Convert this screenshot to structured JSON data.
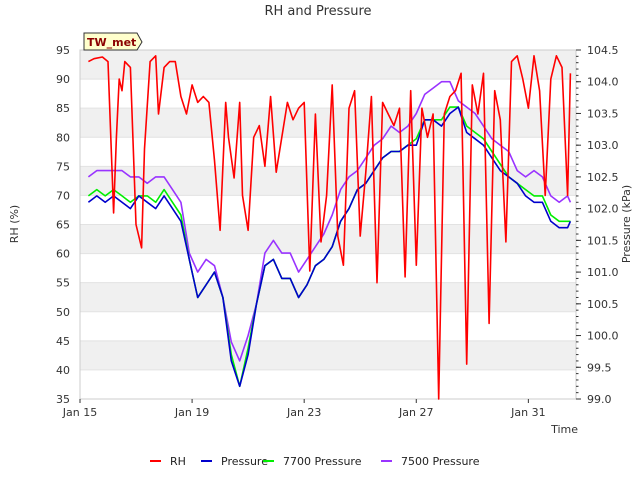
{
  "chart_data": {
    "type": "line",
    "title": "RH and Pressure",
    "badge": "TW_met",
    "xlabel": "Time",
    "ylabel_left": "RH (%)",
    "ylabel_right": "Pressure (kPa)",
    "x_ticks": [
      {
        "label": "Jan 15",
        "day": 15
      },
      {
        "label": "Jan 19",
        "day": 19
      },
      {
        "label": "Jan 23",
        "day": 23
      },
      {
        "label": "Jan 27",
        "day": 27
      },
      {
        "label": "Jan 31",
        "day": 31
      }
    ],
    "xlim_days": [
      15,
      32.7
    ],
    "ylim_left": [
      35,
      95
    ],
    "yticks_left": [
      35,
      40,
      45,
      50,
      55,
      60,
      65,
      70,
      75,
      80,
      85,
      90,
      95
    ],
    "ylim_right": [
      99.0,
      104.5
    ],
    "yticks_right": [
      "99.0",
      "99.5",
      "100.0",
      "100.5",
      "101.0",
      "101.5",
      "102.0",
      "102.5",
      "103.0",
      "103.5",
      "104.0",
      "104.5"
    ],
    "grid": "horizontal bands",
    "legend": "bottom",
    "series": [
      {
        "name": "RH",
        "color": "#ff0000",
        "axis": "left",
        "x": [
          15.3,
          15.5,
          15.8,
          16.0,
          16.2,
          16.3,
          16.4,
          16.5,
          16.6,
          16.8,
          17.0,
          17.2,
          17.3,
          17.5,
          17.7,
          17.8,
          18.0,
          18.2,
          18.4,
          18.6,
          18.8,
          19.0,
          19.2,
          19.4,
          19.6,
          19.8,
          20.0,
          20.2,
          20.3,
          20.5,
          20.7,
          20.8,
          21.0,
          21.2,
          21.4,
          21.6,
          21.8,
          22.0,
          22.2,
          22.4,
          22.6,
          22.8,
          23.0,
          23.2,
          23.4,
          23.6,
          23.8,
          24.0,
          24.2,
          24.4,
          24.6,
          24.8,
          25.0,
          25.2,
          25.4,
          25.6,
          25.8,
          26.0,
          26.2,
          26.4,
          26.6,
          26.8,
          27.0,
          27.2,
          27.4,
          27.6,
          27.8,
          28.0,
          28.2,
          28.4,
          28.6,
          28.8,
          29.0,
          29.2,
          29.4,
          29.6,
          29.8,
          30.0,
          30.2,
          30.4,
          30.6,
          30.8,
          31.0,
          31.2,
          31.4,
          31.6,
          31.8,
          32.0,
          32.2,
          32.4,
          32.5
        ],
        "y": [
          93,
          93.5,
          93.8,
          93,
          67,
          80,
          90,
          88,
          93,
          92,
          65,
          61,
          78,
          93,
          94,
          84,
          92,
          93,
          93,
          87,
          84,
          89,
          86,
          87,
          86,
          76,
          64,
          86,
          80,
          73,
          86,
          70,
          64,
          80,
          82,
          75,
          87,
          74,
          80,
          86,
          83,
          85,
          86,
          57,
          84,
          62,
          70,
          89,
          63,
          58,
          85,
          88,
          63,
          74,
          87,
          55,
          86,
          84,
          82,
          85,
          56,
          88,
          58,
          85,
          80,
          84,
          35,
          84,
          87,
          88,
          91,
          41,
          89,
          84,
          91,
          48,
          88,
          83,
          62,
          93,
          94,
          90,
          85,
          94,
          88,
          70,
          90,
          94,
          92,
          70,
          91
        ],
        "values_note": ""
      },
      {
        "name": "Pressure",
        "color": "#0000cc",
        "axis": "right",
        "x": [
          15.3,
          15.6,
          15.9,
          16.2,
          16.5,
          16.8,
          17.1,
          17.4,
          17.7,
          18.0,
          18.3,
          18.6,
          18.9,
          19.2,
          19.5,
          19.8,
          20.1,
          20.4,
          20.7,
          21.0,
          21.3,
          21.6,
          21.9,
          22.2,
          22.5,
          22.8,
          23.1,
          23.4,
          23.7,
          24.0,
          24.3,
          24.6,
          24.9,
          25.2,
          25.5,
          25.8,
          26.1,
          26.4,
          26.7,
          27.0,
          27.3,
          27.6,
          27.9,
          28.2,
          28.5,
          28.8,
          29.1,
          29.4,
          29.7,
          30.0,
          30.3,
          30.6,
          30.9,
          31.2,
          31.5,
          31.8,
          32.1,
          32.4,
          32.5
        ],
        "y": [
          102.1,
          102.2,
          102.1,
          102.2,
          102.1,
          102.0,
          102.2,
          102.1,
          102.0,
          102.2,
          102.0,
          101.8,
          101.2,
          100.6,
          100.8,
          101.0,
          100.6,
          99.6,
          99.2,
          99.7,
          100.5,
          101.1,
          101.2,
          100.9,
          100.9,
          100.6,
          100.8,
          101.1,
          101.2,
          101.4,
          101.8,
          102.0,
          102.3,
          102.4,
          102.6,
          102.8,
          102.9,
          102.9,
          103.0,
          103.0,
          103.4,
          103.4,
          103.3,
          103.5,
          103.6,
          103.2,
          103.1,
          103.0,
          102.8,
          102.6,
          102.5,
          102.4,
          102.2,
          102.1,
          102.1,
          101.8,
          101.7,
          101.7,
          101.8
        ]
      },
      {
        "name": "7700 Pressure",
        "color": "#00ee00",
        "axis": "right",
        "x": [
          15.3,
          15.6,
          15.9,
          16.2,
          16.5,
          16.8,
          17.1,
          17.4,
          17.7,
          18.0,
          18.3,
          18.6,
          18.9,
          19.2,
          19.5,
          19.8,
          20.1,
          20.4,
          20.7,
          21.0,
          21.3,
          21.6,
          21.9,
          22.2,
          22.5,
          22.8,
          23.1,
          23.4,
          23.7,
          24.0,
          24.3,
          24.6,
          24.9,
          25.2,
          25.5,
          25.8,
          26.1,
          26.4,
          26.7,
          27.0,
          27.3,
          27.6,
          27.9,
          28.2,
          28.5,
          28.8,
          29.1,
          29.4,
          29.7,
          30.0,
          30.3,
          30.6,
          30.9,
          31.2,
          31.5,
          31.8,
          32.1,
          32.4,
          32.5
        ],
        "y": [
          102.2,
          102.3,
          102.2,
          102.3,
          102.2,
          102.1,
          102.2,
          102.2,
          102.1,
          102.3,
          102.1,
          101.9,
          101.2,
          100.6,
          100.8,
          101.0,
          100.6,
          99.7,
          99.2,
          99.8,
          100.5,
          101.1,
          101.2,
          100.9,
          100.9,
          100.6,
          100.8,
          101.1,
          101.2,
          101.4,
          101.8,
          102.0,
          102.3,
          102.4,
          102.6,
          102.8,
          102.9,
          102.9,
          103.0,
          103.1,
          103.4,
          103.4,
          103.4,
          103.6,
          103.6,
          103.3,
          103.2,
          103.1,
          102.9,
          102.7,
          102.5,
          102.4,
          102.3,
          102.2,
          102.2,
          101.9,
          101.8,
          101.8,
          101.8
        ]
      },
      {
        "name": "7500 Pressure",
        "color": "#9933ff",
        "axis": "right",
        "x": [
          15.3,
          15.6,
          15.9,
          16.2,
          16.5,
          16.8,
          17.1,
          17.4,
          17.7,
          18.0,
          18.3,
          18.6,
          18.9,
          19.2,
          19.5,
          19.8,
          20.1,
          20.4,
          20.7,
          21.0,
          21.3,
          21.6,
          21.9,
          22.2,
          22.5,
          22.8,
          23.1,
          23.4,
          23.7,
          24.0,
          24.3,
          24.6,
          24.9,
          25.2,
          25.5,
          25.8,
          26.1,
          26.4,
          26.7,
          27.0,
          27.3,
          27.6,
          27.9,
          28.2,
          28.5,
          28.8,
          29.1,
          29.4,
          29.7,
          30.0,
          30.3,
          30.6,
          30.9,
          31.2,
          31.5,
          31.8,
          32.1,
          32.4,
          32.5
        ],
        "y": [
          102.5,
          102.6,
          102.6,
          102.6,
          102.6,
          102.5,
          102.5,
          102.4,
          102.5,
          102.5,
          102.3,
          102.1,
          101.3,
          101.0,
          101.2,
          101.1,
          100.6,
          99.9,
          99.6,
          100.0,
          100.5,
          101.3,
          101.5,
          101.3,
          101.3,
          101.0,
          101.2,
          101.4,
          101.6,
          101.9,
          102.3,
          102.5,
          102.6,
          102.8,
          103.0,
          103.1,
          103.3,
          103.2,
          103.3,
          103.5,
          103.8,
          103.9,
          104.0,
          104.0,
          103.7,
          103.6,
          103.5,
          103.3,
          103.1,
          103.0,
          102.9,
          102.6,
          102.5,
          102.6,
          102.5,
          102.2,
          102.1,
          102.2,
          102.1
        ]
      }
    ]
  }
}
